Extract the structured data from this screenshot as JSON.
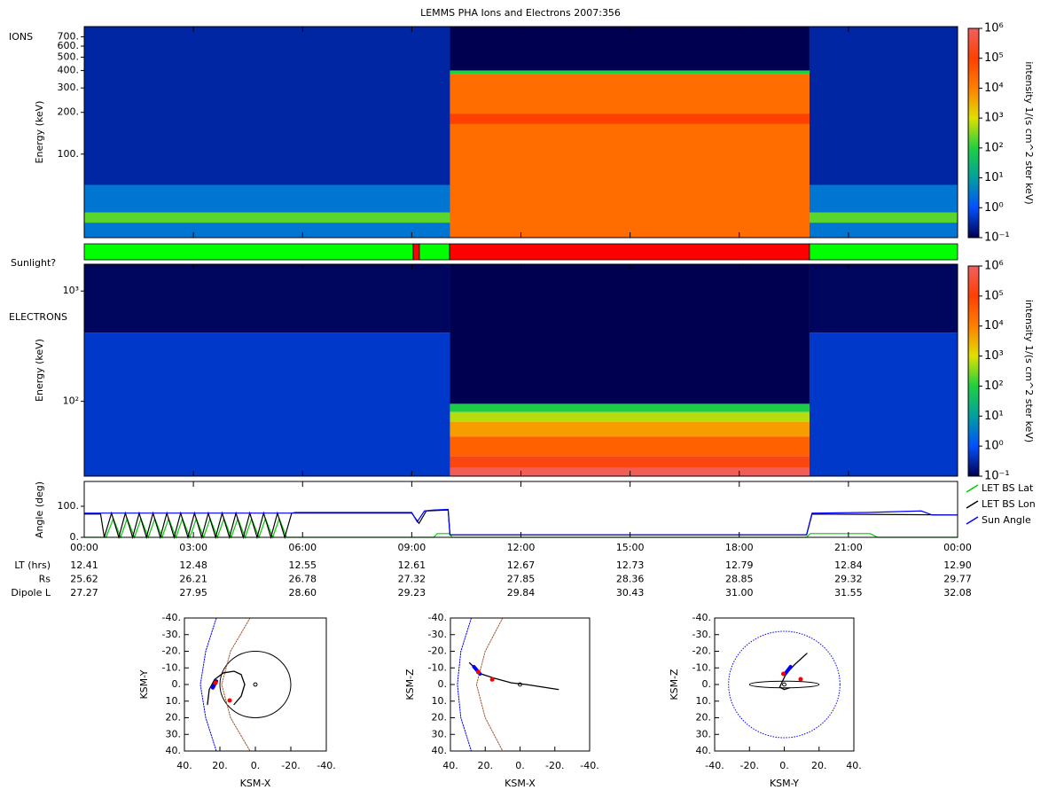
{
  "title": "LEMMS PHA Ions and Electrons  2007:356",
  "colorbar": {
    "label": "intensity 1/(s cm^2 ster keV)",
    "lim": [
      0.1,
      1000000
    ],
    "log": true,
    "ticks": [
      {
        "value": 0.1,
        "label": "10⁻¹"
      },
      {
        "value": 1,
        "label": "10⁰"
      },
      {
        "value": 10,
        "label": "10¹"
      },
      {
        "value": 100,
        "label": "10²"
      },
      {
        "value": 1000,
        "label": "10³"
      },
      {
        "value": 10000,
        "label": "10⁴"
      },
      {
        "value": 100000,
        "label": "10⁵"
      },
      {
        "value": 1000000,
        "label": "10⁶"
      }
    ],
    "colormap": [
      "#000050",
      "#0050ff",
      "#00a0a0",
      "#20d040",
      "#e0e000",
      "#ff8000",
      "#ff4000",
      "#f06060"
    ]
  },
  "ions": {
    "type": "spectrogram",
    "label": "IONS",
    "ylabel": "Energy (keV)",
    "log": true,
    "ylim": [
      25,
      830
    ],
    "yticks": [
      {
        "value": 100,
        "label": "100."
      },
      {
        "value": 200,
        "label": "200."
      },
      {
        "value": 300,
        "label": "300."
      },
      {
        "value": 400,
        "label": "400."
      },
      {
        "value": 500,
        "label": "500."
      },
      {
        "value": 600,
        "label": "600."
      },
      {
        "value": 700,
        "label": "700."
      }
    ],
    "blocks": [
      {
        "x": [
          0,
          10.05
        ],
        "y": [
          25,
          830
        ],
        "value": 0.3
      },
      {
        "x": [
          0,
          10.05
        ],
        "y": [
          25,
          60
        ],
        "value": 3
      },
      {
        "x": [
          0,
          10.05
        ],
        "y": [
          32,
          38
        ],
        "value": 200
      },
      {
        "x": [
          10.05,
          19.93
        ],
        "y": [
          400,
          830
        ],
        "value": 0.1
      },
      {
        "x": [
          10.05,
          19.93
        ],
        "y": [
          380,
          400
        ],
        "value": 100
      },
      {
        "x": [
          10.05,
          19.93
        ],
        "y": [
          25,
          380
        ],
        "value": 20000
      },
      {
        "x": [
          10.05,
          19.93
        ],
        "y": [
          165,
          195
        ],
        "value": 100000
      },
      {
        "x": [
          19.93,
          24
        ],
        "y": [
          25,
          830
        ],
        "value": 0.3
      },
      {
        "x": [
          19.93,
          24
        ],
        "y": [
          25,
          60
        ],
        "value": 3
      },
      {
        "x": [
          19.93,
          24
        ],
        "y": [
          32,
          38
        ],
        "value": 200
      }
    ]
  },
  "sunlight": {
    "label": "Sunlight?",
    "colors": {
      "sunlit": "#00ff00",
      "shadow": "#ff0000"
    },
    "segments": [
      {
        "x": [
          0,
          9.04
        ],
        "sunlit": true
      },
      {
        "x": [
          9.04,
          9.21
        ],
        "sunlit": false
      },
      {
        "x": [
          9.21,
          10.04
        ],
        "sunlit": true
      },
      {
        "x": [
          10.04,
          19.93
        ],
        "sunlit": false
      },
      {
        "x": [
          19.93,
          24
        ],
        "sunlit": true
      }
    ]
  },
  "electrons": {
    "type": "spectrogram",
    "label": "ELECTRONS",
    "ylabel": "Energy (keV)",
    "log": true,
    "ylim": [
      21,
      1750
    ],
    "yticks": [
      {
        "value": 100,
        "label": "10²"
      },
      {
        "value": 1000,
        "label": "10³"
      }
    ],
    "blocks": [
      {
        "x": [
          0,
          10.05
        ],
        "y": [
          21,
          420
        ],
        "value": 0.5
      },
      {
        "x": [
          0,
          10.05
        ],
        "y": [
          420,
          1750
        ],
        "value": 0.12
      },
      {
        "x": [
          10.05,
          19.93
        ],
        "y": [
          95,
          1750
        ],
        "value": 0.1
      },
      {
        "x": [
          10.05,
          19.93
        ],
        "y": [
          80,
          95
        ],
        "value": 80
      },
      {
        "x": [
          10.05,
          19.93
        ],
        "y": [
          65,
          80
        ],
        "value": 600
      },
      {
        "x": [
          10.05,
          19.93
        ],
        "y": [
          48,
          65
        ],
        "value": 5000
      },
      {
        "x": [
          10.05,
          19.93
        ],
        "y": [
          32,
          48
        ],
        "value": 30000
      },
      {
        "x": [
          10.05,
          19.93
        ],
        "y": [
          25,
          32
        ],
        "value": 150000
      },
      {
        "x": [
          10.05,
          19.93
        ],
        "y": [
          21,
          25
        ],
        "value": 800000
      },
      {
        "x": [
          19.93,
          24
        ],
        "y": [
          21,
          420
        ],
        "value": 0.5
      },
      {
        "x": [
          19.93,
          24
        ],
        "y": [
          420,
          1750
        ],
        "value": 0.12
      }
    ]
  },
  "angle": {
    "type": "line",
    "ylabel": "Angle (deg)",
    "ylim": [
      0,
      180
    ],
    "yticks": [
      {
        "value": 0,
        "label": "0."
      },
      {
        "value": 100,
        "label": "100."
      }
    ],
    "legend": "right",
    "series": [
      {
        "name": "LET BS Lat",
        "color": "#00cc00",
        "x": [
          0,
          0.6,
          0.8,
          1.0,
          1.18,
          1.38,
          1.56,
          1.76,
          1.94,
          2.14,
          2.32,
          2.52,
          2.7,
          2.9,
          3.08,
          3.28,
          3.46,
          3.66,
          3.84,
          4.04,
          4.22,
          4.42,
          4.6,
          4.8,
          4.98,
          5.18,
          5.36,
          5.56,
          9.6,
          9.7,
          10.05,
          10.1,
          19.85,
          19.95,
          21.6,
          21.8,
          24
        ],
        "values": [
          0,
          0,
          60,
          0,
          60,
          0,
          60,
          0,
          60,
          0,
          60,
          0,
          60,
          0,
          60,
          0,
          60,
          0,
          60,
          0,
          60,
          0,
          60,
          0,
          60,
          0,
          60,
          0,
          0,
          12,
          12,
          0,
          0,
          12,
          12,
          0,
          0
        ]
      },
      {
        "name": "LET BS Lon",
        "color": "#000000",
        "x": [
          0,
          0.45,
          0.55,
          0.75,
          0.95,
          1.13,
          1.33,
          1.51,
          1.71,
          1.89,
          2.09,
          2.27,
          2.47,
          2.65,
          2.85,
          3.03,
          3.23,
          3.41,
          3.61,
          3.79,
          3.99,
          4.17,
          4.37,
          4.55,
          4.75,
          4.93,
          5.13,
          5.31,
          5.51,
          5.7,
          9.0,
          9.2,
          9.4,
          10.0,
          10.05,
          19.85,
          20.0,
          24
        ],
        "values": [
          75,
          75,
          0,
          78,
          0,
          78,
          0,
          78,
          0,
          78,
          0,
          78,
          0,
          78,
          0,
          78,
          0,
          78,
          0,
          78,
          0,
          78,
          0,
          78,
          0,
          78,
          0,
          78,
          0,
          78,
          78,
          45,
          85,
          88,
          8,
          8,
          75,
          72
        ]
      },
      {
        "name": "Sun Angle",
        "color": "#0000ff",
        "x": [
          0,
          5.7,
          5.8,
          9.0,
          9.15,
          9.35,
          9.6,
          10.0,
          10.05,
          19.85,
          20.0,
          21.5,
          23.0,
          23.3,
          24
        ],
        "values": [
          78,
          78,
          80,
          80,
          50,
          85,
          88,
          90,
          8,
          8,
          78,
          80,
          85,
          72,
          72
        ]
      }
    ]
  },
  "time": {
    "xlim": [
      0,
      24
    ],
    "xticks": [
      {
        "value": 0,
        "label": "00:00"
      },
      {
        "value": 3,
        "label": "03:00"
      },
      {
        "value": 6,
        "label": "06:00"
      },
      {
        "value": 9,
        "label": "09:00"
      },
      {
        "value": 12,
        "label": "12:00"
      },
      {
        "value": 15,
        "label": "15:00"
      },
      {
        "value": 18,
        "label": "18:00"
      },
      {
        "value": 21,
        "label": "21:00"
      },
      {
        "value": 24,
        "label": "00:00"
      }
    ],
    "rows": [
      {
        "name": "LT (hrs)",
        "values": [
          "12.41",
          "12.48",
          "12.55",
          "12.61",
          "12.67",
          "12.73",
          "12.79",
          "12.84",
          "12.90"
        ]
      },
      {
        "name": "Rs",
        "values": [
          "25.62",
          "26.21",
          "26.78",
          "27.32",
          "27.85",
          "28.36",
          "28.85",
          "29.32",
          "29.77"
        ]
      },
      {
        "name": "Dipole L",
        "values": [
          "27.27",
          "27.95",
          "28.60",
          "29.23",
          "29.84",
          "30.43",
          "31.00",
          "31.55",
          "32.08"
        ]
      }
    ]
  },
  "orbits": [
    {
      "type": "orbit",
      "xlabel": "KSM-X",
      "ylabel": "KSM-Y",
      "xlim": [
        40,
        -40
      ],
      "ylim": [
        -40,
        40
      ],
      "xticks": [
        {
          "value": 40,
          "label": "40."
        },
        {
          "value": 20,
          "label": "20."
        },
        {
          "value": 0,
          "label": "0."
        },
        {
          "value": -20,
          "label": "-20."
        },
        {
          "value": -40,
          "label": "-40."
        }
      ],
      "yticks": [
        {
          "value": -40,
          "label": "-40."
        },
        {
          "value": -30,
          "label": "-30."
        },
        {
          "value": -20,
          "label": "-20."
        },
        {
          "value": -10,
          "label": "-10."
        },
        {
          "value": 0,
          "label": "0."
        },
        {
          "value": 10,
          "label": "10."
        },
        {
          "value": 20,
          "label": "20."
        },
        {
          "value": 30,
          "label": "30."
        },
        {
          "value": 40,
          "label": "40."
        }
      ],
      "curves": [
        {
          "color": "#0000ff",
          "dash": true,
          "width": 1,
          "x": [
            22,
            28,
            31,
            28,
            22
          ],
          "y": [
            -40,
            -20,
            0,
            20,
            40
          ]
        },
        {
          "color": "#a0522d",
          "dash": true,
          "width": 1,
          "x": [
            3,
            14,
            19,
            14,
            3
          ],
          "y": [
            -40,
            -20,
            0,
            20,
            40
          ]
        },
        {
          "color": "#000000",
          "dash": false,
          "width": 1.3,
          "x": [
            27,
            26,
            23,
            18,
            12,
            8,
            6,
            8,
            12
          ],
          "y": [
            12,
            3,
            -3,
            -7,
            -8,
            -6,
            0,
            7,
            12
          ]
        },
        {
          "color": "#0000ff",
          "dash": false,
          "width": 4,
          "x": [
            24,
            22
          ],
          "y": [
            2,
            -2
          ]
        }
      ],
      "rings": [
        {
          "rx": 20,
          "ry": 20,
          "color": "#000000",
          "dash": false
        },
        {
          "rx": 1,
          "ry": 1,
          "color": "#000000",
          "dash": false
        }
      ],
      "markers": {
        "color": "#ff0000",
        "x": [
          22.5,
          14.5
        ],
        "y": [
          -1,
          9.6
        ]
      }
    },
    {
      "type": "orbit",
      "xlabel": "KSM-X",
      "ylabel": "KSM-Z",
      "xlim": [
        40,
        -40
      ],
      "ylim": [
        -40,
        40
      ],
      "xticks": [
        {
          "value": 40,
          "label": "40."
        },
        {
          "value": 20,
          "label": "20."
        },
        {
          "value": 0,
          "label": "0."
        },
        {
          "value": -20,
          "label": "-20."
        },
        {
          "value": -40,
          "label": "-40."
        }
      ],
      "yticks": [
        {
          "value": -40,
          "label": "-40."
        },
        {
          "value": -30,
          "label": "-30."
        },
        {
          "value": -20,
          "label": "-20."
        },
        {
          "value": -10,
          "label": "-10."
        },
        {
          "value": 0,
          "label": "0."
        },
        {
          "value": 10,
          "label": "10."
        },
        {
          "value": 20,
          "label": "20."
        },
        {
          "value": 30,
          "label": "30."
        },
        {
          "value": 40,
          "label": "40."
        }
      ],
      "curves": [
        {
          "color": "#0000ff",
          "dash": true,
          "width": 1,
          "x": [
            28,
            34,
            36,
            34,
            28
          ],
          "y": [
            -40,
            -20,
            0,
            20,
            40
          ]
        },
        {
          "color": "#a0522d",
          "dash": true,
          "width": 1,
          "x": [
            10,
            20,
            25,
            20,
            10
          ],
          "y": [
            -40,
            -20,
            0,
            20,
            40
          ]
        },
        {
          "color": "#000000",
          "dash": false,
          "width": 1.3,
          "x": [
            29,
            22.4,
            14.6,
            5,
            -3.6,
            -22
          ],
          "y": [
            -13,
            -6.4,
            -3.7,
            -1,
            0,
            3
          ]
        },
        {
          "color": "#0000ff",
          "dash": false,
          "width": 4,
          "x": [
            26.5,
            23
          ],
          "y": [
            -10.7,
            -6.4
          ]
        }
      ],
      "rings": [
        {
          "rx": 1,
          "ry": 1,
          "color": "#000000",
          "dash": false
        }
      ],
      "markers": {
        "color": "#ff0000",
        "x": [
          24,
          16
        ],
        "y": [
          -7.5,
          -3
        ]
      }
    },
    {
      "type": "orbit",
      "xlabel": "KSM-Y",
      "ylabel": "KSM-Z",
      "xlim": [
        -40,
        40
      ],
      "ylim": [
        -40,
        40
      ],
      "xticks": [
        {
          "value": -40,
          "label": "-40."
        },
        {
          "value": -20,
          "label": "-20."
        },
        {
          "value": 0,
          "label": "0."
        },
        {
          "value": 20,
          "label": "20."
        },
        {
          "value": 40,
          "label": "40."
        }
      ],
      "yticks": [
        {
          "value": -40,
          "label": "-40."
        },
        {
          "value": -30,
          "label": "-30."
        },
        {
          "value": -20,
          "label": "-20."
        },
        {
          "value": -10,
          "label": "-10."
        },
        {
          "value": 0,
          "label": "0."
        },
        {
          "value": 10,
          "label": "10."
        },
        {
          "value": 20,
          "label": "20."
        },
        {
          "value": 30,
          "label": "30."
        },
        {
          "value": 40,
          "label": "40."
        }
      ],
      "curves": [
        {
          "color": "#000000",
          "dash": false,
          "width": 1.3,
          "x": [
            13,
            6,
            1,
            -2.6,
            0,
            3
          ],
          "y": [
            -18.7,
            -12,
            -6.4,
            1.6,
            3,
            2
          ]
        },
        {
          "color": "#0000ff",
          "dash": false,
          "width": 4,
          "x": [
            0.5,
            3.6
          ],
          "y": [
            -6.4,
            -10.7
          ]
        }
      ],
      "rings": [
        {
          "rx": 32,
          "ry": 32,
          "color": "#0000ff",
          "dash": true
        },
        {
          "rx": 20,
          "ry": 2,
          "color": "#000000",
          "dash": false
        },
        {
          "rx": 1,
          "ry": 1,
          "color": "#000000",
          "dash": false
        }
      ],
      "markers": {
        "color": "#ff0000",
        "x": [
          -0.5,
          9.4
        ],
        "y": [
          -6.4,
          -3.2
        ]
      }
    }
  ]
}
